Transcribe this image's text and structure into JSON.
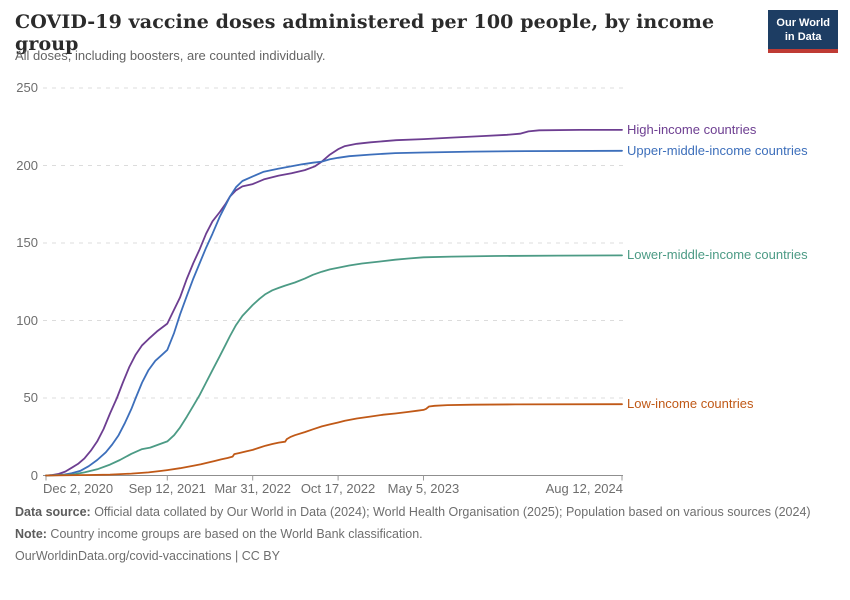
{
  "chart_data": {
    "type": "line",
    "title": "COVID-19 vaccine doses administered per 100 people, by income group",
    "subtitle": "All doses, including boosters, are counted individually.",
    "x_unit": "days since 2020-12-02",
    "grid": true,
    "legend_position": "right of line ends",
    "x_axis": {
      "ticks": [
        {
          "label": "Dec 2, 2020",
          "day": 0,
          "align": "left"
        },
        {
          "label": "Sep 12, 2021",
          "day": 284,
          "align": "center"
        },
        {
          "label": "Mar 31, 2022",
          "day": 484,
          "align": "center"
        },
        {
          "label": "Oct 17, 2022",
          "day": 684,
          "align": "center"
        },
        {
          "label": "May 5, 2023",
          "day": 884,
          "align": "center"
        },
        {
          "label": "Aug 12, 2024",
          "day": 1349,
          "align": "right"
        }
      ],
      "range_days": [
        0,
        1349
      ]
    },
    "y_axis": {
      "ticks": [
        0,
        50,
        100,
        150,
        200,
        250
      ],
      "range": [
        0,
        250
      ]
    },
    "series": [
      {
        "name": "High-income countries",
        "color": "#6d3e91",
        "points": [
          [
            0,
            0
          ],
          [
            15,
            0.3
          ],
          [
            30,
            1
          ],
          [
            45,
            2.5
          ],
          [
            60,
            5
          ],
          [
            75,
            7.5
          ],
          [
            90,
            11
          ],
          [
            105,
            16
          ],
          [
            120,
            22
          ],
          [
            135,
            30
          ],
          [
            150,
            40
          ],
          [
            166,
            50
          ],
          [
            180,
            60
          ],
          [
            195,
            70
          ],
          [
            210,
            78
          ],
          [
            225,
            84
          ],
          [
            240,
            88
          ],
          [
            260,
            93
          ],
          [
            284,
            98
          ],
          [
            300,
            107
          ],
          [
            314,
            115
          ],
          [
            330,
            127
          ],
          [
            345,
            137
          ],
          [
            360,
            146
          ],
          [
            375,
            156
          ],
          [
            390,
            164
          ],
          [
            407,
            170
          ],
          [
            420,
            175
          ],
          [
            431,
            180
          ],
          [
            445,
            184
          ],
          [
            460,
            186.5
          ],
          [
            484,
            188
          ],
          [
            510,
            191
          ],
          [
            545,
            193.5
          ],
          [
            575,
            195
          ],
          [
            606,
            197
          ],
          [
            630,
            199.5
          ],
          [
            646,
            202.5
          ],
          [
            665,
            207
          ],
          [
            684,
            210.5
          ],
          [
            700,
            212.5
          ],
          [
            728,
            214
          ],
          [
            760,
            215
          ],
          [
            820,
            216.3
          ],
          [
            884,
            217
          ],
          [
            950,
            218
          ],
          [
            1020,
            219
          ],
          [
            1080,
            219.8
          ],
          [
            1110,
            220.5
          ],
          [
            1130,
            222
          ],
          [
            1155,
            222.7
          ],
          [
            1250,
            223
          ],
          [
            1349,
            223
          ]
        ]
      },
      {
        "name": "Upper-middle-income countries",
        "color": "#3d6fbb",
        "points": [
          [
            0,
            0
          ],
          [
            40,
            0.5
          ],
          [
            60,
            1.5
          ],
          [
            80,
            3
          ],
          [
            100,
            6
          ],
          [
            120,
            10
          ],
          [
            140,
            15
          ],
          [
            155,
            20
          ],
          [
            170,
            26
          ],
          [
            185,
            34
          ],
          [
            200,
            43
          ],
          [
            210,
            50
          ],
          [
            225,
            60
          ],
          [
            240,
            68
          ],
          [
            256,
            74
          ],
          [
            270,
            77.5
          ],
          [
            284,
            81
          ],
          [
            300,
            92
          ],
          [
            314,
            104
          ],
          [
            330,
            116
          ],
          [
            345,
            127
          ],
          [
            360,
            137
          ],
          [
            375,
            147
          ],
          [
            390,
            156
          ],
          [
            407,
            167
          ],
          [
            420,
            174
          ],
          [
            431,
            180
          ],
          [
            445,
            186
          ],
          [
            460,
            190
          ],
          [
            484,
            193
          ],
          [
            510,
            196
          ],
          [
            545,
            198
          ],
          [
            575,
            199.5
          ],
          [
            600,
            200.8
          ],
          [
            625,
            201.8
          ],
          [
            646,
            202.5
          ],
          [
            665,
            204
          ],
          [
            684,
            205
          ],
          [
            710,
            206
          ],
          [
            759,
            207
          ],
          [
            818,
            208
          ],
          [
            884,
            208.4
          ],
          [
            1000,
            209
          ],
          [
            1124,
            209.3
          ],
          [
            1349,
            209.5
          ]
        ]
      },
      {
        "name": "Lower-middle-income countries",
        "color": "#4c9b85",
        "points": [
          [
            0,
            0
          ],
          [
            60,
            0.5
          ],
          [
            90,
            2
          ],
          [
            120,
            4
          ],
          [
            150,
            7
          ],
          [
            173,
            10
          ],
          [
            200,
            14
          ],
          [
            225,
            17
          ],
          [
            244,
            18
          ],
          [
            264,
            20
          ],
          [
            284,
            22
          ],
          [
            300,
            26
          ],
          [
            314,
            31
          ],
          [
            330,
            38
          ],
          [
            345,
            45
          ],
          [
            360,
            52
          ],
          [
            375,
            60
          ],
          [
            390,
            68
          ],
          [
            407,
            77
          ],
          [
            420,
            84
          ],
          [
            431,
            90
          ],
          [
            445,
            97
          ],
          [
            460,
            103
          ],
          [
            484,
            110
          ],
          [
            500,
            114
          ],
          [
            514,
            117
          ],
          [
            530,
            119.5
          ],
          [
            545,
            121
          ],
          [
            560,
            122.5
          ],
          [
            583,
            124.5
          ],
          [
            606,
            127
          ],
          [
            625,
            129.5
          ],
          [
            646,
            131.5
          ],
          [
            665,
            133
          ],
          [
            684,
            134
          ],
          [
            710,
            135.5
          ],
          [
            740,
            136.8
          ],
          [
            780,
            138
          ],
          [
            818,
            139.2
          ],
          [
            849,
            140
          ],
          [
            884,
            140.8
          ],
          [
            950,
            141.2
          ],
          [
            1050,
            141.6
          ],
          [
            1200,
            141.9
          ],
          [
            1349,
            142
          ]
        ]
      },
      {
        "name": "Low-income countries",
        "color": "#c05917",
        "points": [
          [
            0,
            0
          ],
          [
            100,
            0.3
          ],
          [
            150,
            0.6
          ],
          [
            200,
            1.2
          ],
          [
            240,
            2
          ],
          [
            270,
            3
          ],
          [
            284,
            3.5
          ],
          [
            314,
            4.7
          ],
          [
            345,
            6.3
          ],
          [
            363,
            7.2
          ],
          [
            380,
            8.4
          ],
          [
            394,
            9.3
          ],
          [
            410,
            10.4
          ],
          [
            425,
            11.3
          ],
          [
            437,
            12.2
          ],
          [
            441,
            13.8
          ],
          [
            453,
            14.5
          ],
          [
            470,
            15.6
          ],
          [
            484,
            16.5
          ],
          [
            500,
            18
          ],
          [
            514,
            19.2
          ],
          [
            530,
            20.3
          ],
          [
            545,
            21.2
          ],
          [
            560,
            21.8
          ],
          [
            564,
            23.5
          ],
          [
            572,
            24.8
          ],
          [
            583,
            26
          ],
          [
            606,
            28
          ],
          [
            625,
            29.8
          ],
          [
            646,
            31.7
          ],
          [
            665,
            33
          ],
          [
            684,
            34.2
          ],
          [
            700,
            35.3
          ],
          [
            728,
            36.8
          ],
          [
            759,
            38
          ],
          [
            790,
            39.2
          ],
          [
            818,
            40
          ],
          [
            849,
            41
          ],
          [
            870,
            41.8
          ],
          [
            884,
            42.3
          ],
          [
            890,
            43
          ],
          [
            897,
            44.5
          ],
          [
            910,
            45
          ],
          [
            940,
            45.4
          ],
          [
            1000,
            45.7
          ],
          [
            1100,
            45.9
          ],
          [
            1349,
            46
          ]
        ]
      }
    ]
  },
  "logo": {
    "line1": "Our World",
    "line2": "in Data",
    "bg_color": "#1d3d63",
    "stripe_color": "#bf3b34"
  },
  "footer": {
    "source_label": "Data source:",
    "source_text": " Official data collated by Our World in Data (2024); World Health Organisation (2025); Population based on various sources (2024)",
    "note_label": "Note:",
    "note_text": " Country income groups are based on the World Bank classification.",
    "link_text": "OurWorldinData.org/covid-vaccinations | CC BY"
  }
}
